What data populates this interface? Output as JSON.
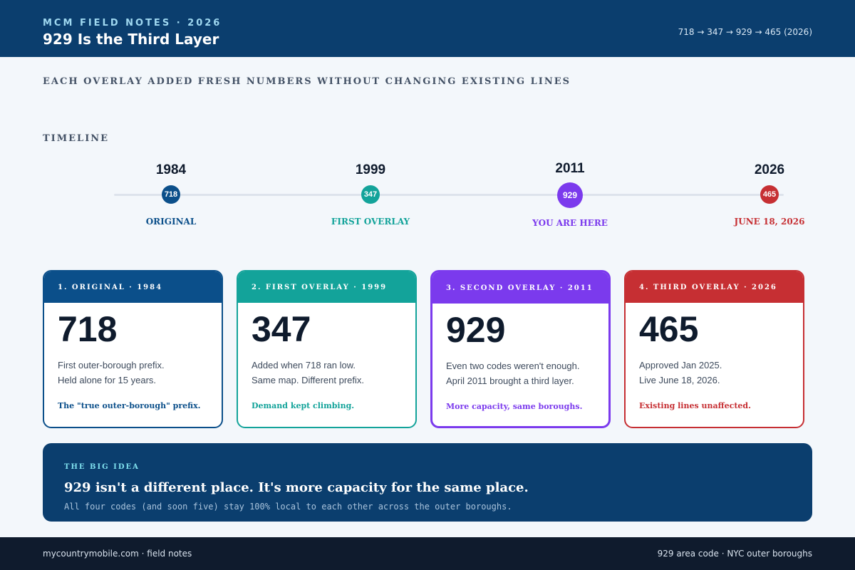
{
  "header": {
    "eyebrow": "MCM FIELD NOTES · 2026",
    "title": "929 Is the Third Layer",
    "codes_chain": "718 → 347 → 929 → 465 (2026)"
  },
  "subheading": "EACH OVERLAY ADDED FRESH NUMBERS WITHOUT CHANGING EXISTING LINES",
  "timeline": {
    "label": "TIMELINE",
    "points": [
      {
        "year": "1984",
        "code": "718",
        "caption": "ORIGINAL",
        "color": "#0b4f8a"
      },
      {
        "year": "1999",
        "code": "347",
        "caption": "FIRST OVERLAY",
        "color": "#13a39a"
      },
      {
        "year": "2011",
        "code": "929",
        "caption": "YOU ARE HERE",
        "color": "#7b3aed"
      },
      {
        "year": "2026",
        "code": "465",
        "caption": "JUNE 18, 2026",
        "color": "#c62f33"
      }
    ]
  },
  "cards": [
    {
      "header": "1. ORIGINAL · 1984",
      "code": "718",
      "line1": "First outer-borough prefix.",
      "line2": "Held alone for 15 years.",
      "note": "The \"true outer-borough\" prefix.",
      "color": "#0b4f8a"
    },
    {
      "header": "2. FIRST OVERLAY · 1999",
      "code": "347",
      "line1": "Added when 718 ran low.",
      "line2": "Same map. Different prefix.",
      "note": "Demand kept climbing.",
      "color": "#13a39a"
    },
    {
      "header": "3. SECOND OVERLAY · 2011",
      "code": "929",
      "line1": "Even two codes weren't enough.",
      "line2": "April 2011 brought a third layer.",
      "note": "More capacity, same boroughs.",
      "color": "#7b3aed"
    },
    {
      "header": "4. THIRD OVERLAY · 2026",
      "code": "465",
      "line1": "Approved Jan 2025.",
      "line2": "Live June 18, 2026.",
      "note": "Existing lines unaffected.",
      "color": "#c62f33"
    }
  ],
  "big_idea": {
    "eyebrow": "THE BIG IDEA",
    "headline": "929 isn't a different place. It's more capacity for the same place.",
    "body": "All four codes (and soon five) stay 100% local to each other across the outer boroughs."
  },
  "footer": {
    "left": "mycountrymobile.com · field notes",
    "right": "929 area code · NYC outer boroughs"
  }
}
